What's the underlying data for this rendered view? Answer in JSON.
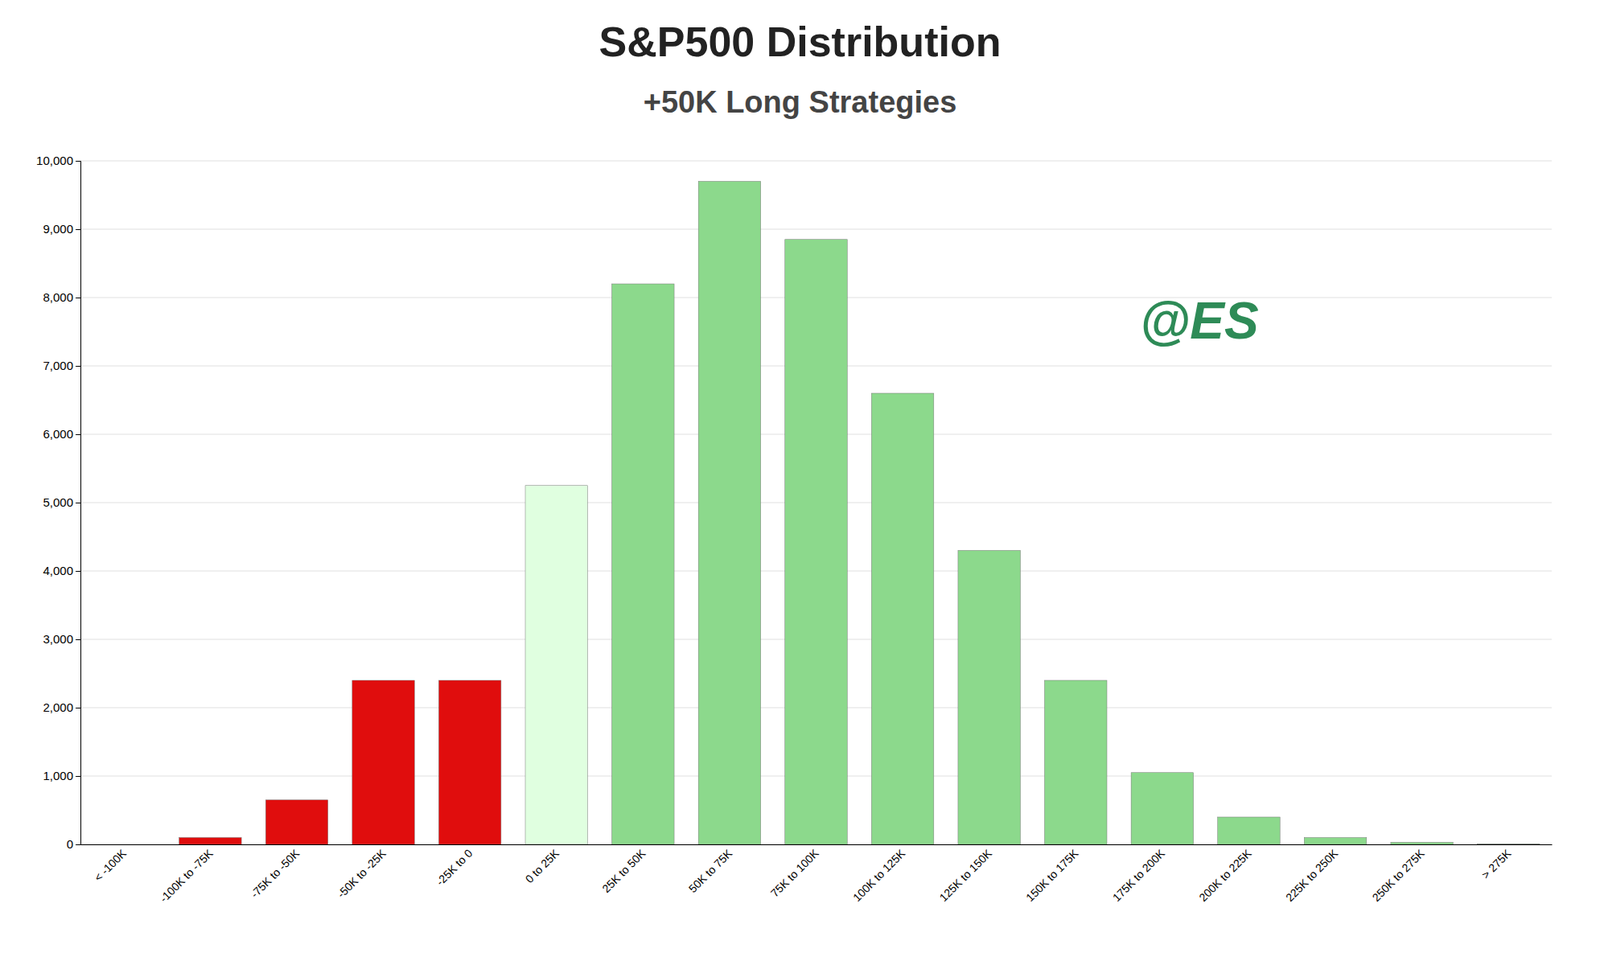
{
  "chart_data": {
    "type": "bar",
    "title": "S&P500 Distribution",
    "subtitle": "+50K Long Strategies",
    "annotation": "@ES",
    "categories": [
      "< -100K",
      "-100K to -75K",
      "-75K to -50K",
      "-50K to -25K",
      "-25K to 0",
      "0 to 25K",
      "25K to 50K",
      "50K to 75K",
      "75K to 100K",
      "100K to 125K",
      "125K to 150K",
      "150K to 175K",
      "175K to 200K",
      "200K to 225K",
      "225K to 250K",
      "250K to 275K",
      "> 275K"
    ],
    "values": [
      0,
      100,
      650,
      2400,
      2400,
      5250,
      8200,
      9700,
      8850,
      6600,
      4300,
      2400,
      1050,
      400,
      100,
      30,
      5
    ],
    "colors": [
      "#e00d0d",
      "#e00d0d",
      "#e00d0d",
      "#e00d0d",
      "#e00d0d",
      "#e0ffe0",
      "#8cd98c",
      "#8cd98c",
      "#8cd98c",
      "#8cd98c",
      "#8cd98c",
      "#8cd98c",
      "#8cd98c",
      "#8cd98c",
      "#8cd98c",
      "#8cd98c",
      "#8cd98c"
    ],
    "ylim": [
      0,
      10000
    ],
    "yticks": [
      0,
      {
        "value": 1000,
        "label": "1,000"
      },
      {
        "value": 2000,
        "label": "2,000"
      },
      {
        "value": 3000,
        "label": "3,000"
      },
      {
        "value": 4000,
        "label": "4,000"
      },
      {
        "value": 5000,
        "label": "5,000"
      },
      {
        "value": 6000,
        "label": "6,000"
      },
      {
        "value": 7000,
        "label": "7,000"
      },
      {
        "value": 8000,
        "label": "8,000"
      },
      {
        "value": 9000,
        "label": "9,000"
      },
      {
        "value": 10000,
        "label": "10,000"
      }
    ],
    "grid": true
  }
}
